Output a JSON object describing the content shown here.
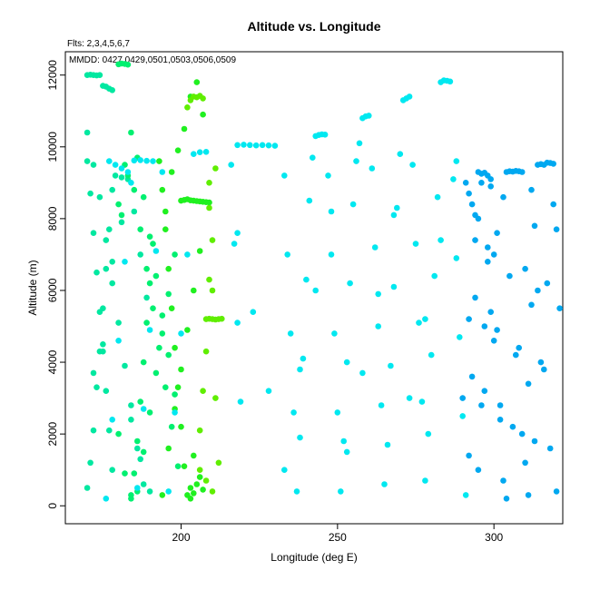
{
  "chart_data": {
    "type": "scatter",
    "title": "Altitude vs. Longitude",
    "xlabel": "Longitude (deg E)",
    "ylabel": "Altitude (m)",
    "xlim": [
      163,
      322
    ],
    "ylim": [
      -500,
      12650
    ],
    "x_ticks": [
      200,
      250,
      300
    ],
    "y_ticks": [
      0,
      2000,
      4000,
      6000,
      8000,
      10000,
      12000
    ],
    "grid": false,
    "annotations": [
      "Flts: 2,3,4,5,6,7",
      "MMDD: 0427,0429,0501,0503,0506,0509"
    ],
    "colors": {
      "flight_2": "#00e8a0",
      "flight_3": "#00f070",
      "flight_4": "#20f020",
      "flight_5": "#60ee00",
      "flight_6": "#00e8f0",
      "flight_7": "#00a8f0"
    },
    "series": [
      {
        "color": "#00e8a0",
        "x": [
          170,
          171,
          172,
          173,
          174,
          175,
          176,
          177,
          178,
          170,
          171,
          172,
          173,
          174,
          175,
          176,
          177,
          178,
          170,
          171,
          172,
          173,
          174,
          175,
          176,
          177,
          178,
          170,
          172,
          174,
          176,
          178,
          180,
          182,
          184,
          186,
          188,
          190,
          179,
          181,
          183,
          185,
          187,
          189,
          172,
          175,
          178,
          181,
          184,
          187
        ],
        "y": [
          12000,
          12010,
          12000,
          11990,
          12000,
          11700,
          11680,
          11620,
          11580,
          500,
          1200,
          2100,
          3300,
          4300,
          5500,
          6600,
          7700,
          8800,
          9600,
          8700,
          7600,
          6500,
          5400,
          4300,
          3200,
          2100,
          1000,
          10400,
          9500,
          8600,
          7400,
          6200,
          5100,
          3900,
          2800,
          1600,
          600,
          400,
          9200,
          9150,
          9100,
          8200,
          7000,
          5800,
          3700,
          4500,
          6800,
          7900,
          2400,
          1300
        ]
      },
      {
        "color": "#00f070",
        "x": [
          180,
          181,
          182,
          183,
          184,
          185,
          186,
          187,
          188,
          189,
          190,
          191,
          180,
          182,
          184,
          186,
          188,
          190,
          192,
          194,
          196,
          198,
          180,
          182,
          184,
          186,
          188,
          190,
          192,
          194,
          196,
          198,
          181,
          183,
          185,
          187,
          189,
          191,
          193,
          195,
          197,
          199
        ],
        "y": [
          12300,
          12320,
          12310,
          12290,
          200,
          900,
          1800,
          2900,
          4000,
          5100,
          6200,
          7300,
          8400,
          9500,
          10400,
          9700,
          8600,
          7500,
          6400,
          5300,
          4200,
          3100,
          2000,
          900,
          300,
          400,
          1500,
          2600,
          3700,
          4800,
          5900,
          7000,
          8100,
          9200,
          8800,
          7700,
          6600,
          5500,
          4400,
          3300,
          2200,
          1100
        ]
      },
      {
        "color": "#20f020",
        "x": [
          193,
          194,
          195,
          196,
          197,
          198,
          199,
          200,
          201,
          202,
          203,
          204,
          194,
          196,
          198,
          200,
          202,
          204,
          206,
          195,
          197,
          199,
          201,
          203,
          205,
          207,
          200,
          201,
          202,
          203,
          204,
          205,
          206,
          207,
          208,
          209,
          203,
          204,
          205,
          206,
          207
        ],
        "y": [
          9600,
          8800,
          7700,
          6600,
          5500,
          4400,
          3300,
          2200,
          1100,
          300,
          500,
          1400,
          300,
          1600,
          2700,
          3800,
          4900,
          6000,
          7100,
          8200,
          9300,
          9900,
          10500,
          11400,
          11800,
          10900,
          8500,
          8520,
          8540,
          8510,
          8500,
          8490,
          8480,
          8470,
          8460,
          8450,
          200,
          350,
          600,
          800,
          450
        ]
      },
      {
        "color": "#60ee00",
        "x": [
          202,
          203,
          204,
          205,
          206,
          207,
          208,
          209,
          210,
          211,
          212,
          213,
          206,
          207,
          208,
          209,
          210,
          206,
          208,
          210,
          209,
          211,
          209,
          210,
          211,
          212
        ],
        "y": [
          11100,
          11300,
          11400,
          11380,
          11420,
          11350,
          5200,
          5210,
          5200,
          5190,
          5200,
          5210,
          2100,
          3200,
          4300,
          6300,
          7400,
          1000,
          700,
          400,
          8300,
          9400,
          9000,
          6000,
          3000,
          1200
        ]
      },
      {
        "color": "#00e8f0",
        "x": [
          177,
          179,
          181,
          183,
          185,
          187,
          189,
          191,
          176,
          178,
          180,
          182,
          184,
          186,
          188,
          190,
          192,
          194,
          196,
          198,
          200,
          202,
          204,
          206,
          208,
          218,
          220,
          222,
          224,
          226,
          228,
          230,
          216,
          217,
          218,
          219,
          233,
          234,
          235,
          236,
          237,
          238,
          239,
          240,
          241,
          242,
          243,
          244,
          245,
          246,
          247,
          248,
          249,
          250,
          251,
          252,
          253,
          254,
          255,
          256,
          257,
          258,
          259,
          260,
          261,
          262,
          263,
          264,
          265,
          266,
          267,
          268,
          269,
          270,
          271,
          272,
          273,
          274,
          275,
          276,
          277,
          278,
          279,
          280,
          281,
          282,
          283,
          284,
          285,
          286,
          287,
          288,
          289,
          290,
          291,
          218,
          223,
          228,
          233,
          238,
          243,
          248,
          253,
          258,
          263,
          268,
          273,
          278,
          283,
          288
        ],
        "y": [
          9600,
          9500,
          9400,
          9300,
          9620,
          9630,
          9610,
          9600,
          200,
          2400,
          4600,
          6800,
          9000,
          500,
          2700,
          4900,
          7100,
          9300,
          400,
          2600,
          4800,
          7000,
          9800,
          9850,
          9860,
          10050,
          10060,
          10050,
          10040,
          10050,
          10040,
          10030,
          9500,
          7300,
          5100,
          2900,
          9200,
          7000,
          4800,
          2600,
          400,
          1900,
          4100,
          6300,
          8500,
          9700,
          10300,
          10330,
          10350,
          10340,
          9200,
          7000,
          4800,
          2600,
          400,
          1800,
          4000,
          6200,
          8400,
          9600,
          10100,
          10800,
          10850,
          10870,
          9400,
          7200,
          5000,
          2800,
          600,
          1700,
          3900,
          6100,
          8300,
          9800,
          11300,
          11350,
          11400,
          9500,
          7300,
          5100,
          2900,
          700,
          2000,
          4200,
          6400,
          8600,
          11800,
          11850,
          11840,
          11820,
          9100,
          6900,
          4700,
          2500,
          300,
          7600,
          5400,
          3200,
          1000,
          3800,
          6000,
          8200,
          1500,
          3700,
          5900,
          8100,
          3000,
          5200,
          7400,
          9600
        ]
      },
      {
        "color": "#00a8f0",
        "x": [
          291,
          292,
          293,
          294,
          295,
          296,
          297,
          298,
          299,
          300,
          301,
          302,
          303,
          304,
          305,
          306,
          307,
          308,
          309,
          310,
          311,
          312,
          313,
          314,
          315,
          316,
          317,
          318,
          319,
          320,
          321,
          290,
          292,
          294,
          296,
          298,
          300,
          302,
          304,
          306,
          308,
          310,
          312,
          314,
          316,
          318,
          320,
          295,
          297,
          299,
          301,
          303,
          305,
          307,
          309,
          311,
          313,
          315,
          317,
          319,
          292,
          293,
          294,
          295,
          296,
          297,
          298,
          299
        ],
        "y": [
          9000,
          8700,
          8400,
          8100,
          9300,
          9250,
          9280,
          9200,
          9100,
          7000,
          4900,
          2800,
          700,
          9300,
          9320,
          9310,
          9330,
          9320,
          9300,
          1200,
          3400,
          5600,
          7800,
          9500,
          9520,
          9500,
          9560,
          9550,
          9530,
          7700,
          5500,
          3000,
          5200,
          7400,
          9000,
          6800,
          4600,
          2400,
          200,
          2200,
          4400,
          6600,
          8800,
          6000,
          3800,
          1600,
          400,
          1000,
          3200,
          5400,
          7600,
          8600,
          6400,
          4200,
          2000,
          300,
          1800,
          4000,
          6200,
          8400,
          1400,
          3600,
          5800,
          8000,
          2800,
          5000,
          7200,
          8900
        ]
      }
    ]
  }
}
